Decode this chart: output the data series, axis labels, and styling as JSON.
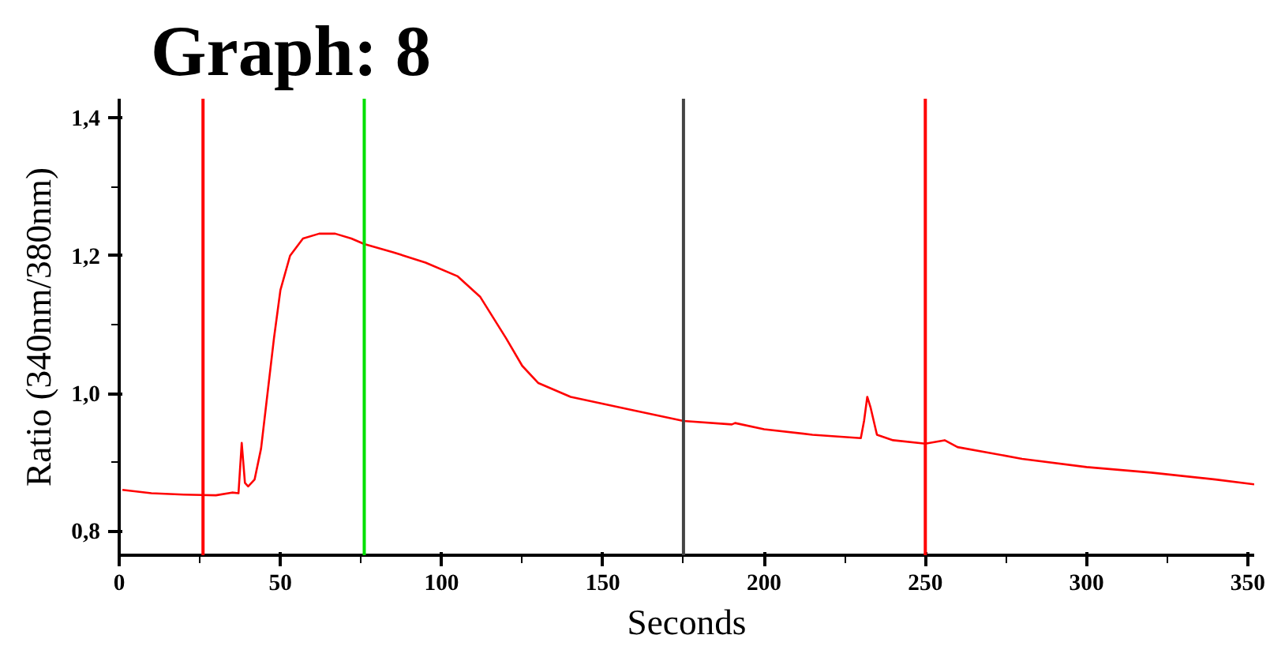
{
  "chart_data": {
    "type": "line",
    "title": "Graph: 8",
    "xlabel": "Seconds",
    "ylabel": "Ratio (340nm/380nm)",
    "x": [
      1,
      10,
      20,
      30,
      35,
      37,
      38,
      39,
      40,
      42,
      44,
      46,
      48,
      50,
      53,
      57,
      62,
      67,
      72,
      76,
      85,
      95,
      105,
      112,
      120,
      125,
      130,
      140,
      150,
      160,
      175,
      190,
      191,
      200,
      215,
      230,
      231,
      232,
      233,
      235,
      240,
      250,
      256,
      260,
      280,
      300,
      320,
      340,
      352
    ],
    "series": [
      {
        "color": "#ff0000",
        "values": [
          0.86,
          0.855,
          0.853,
          0.852,
          0.856,
          0.855,
          0.928,
          0.87,
          0.865,
          0.875,
          0.92,
          1.0,
          1.08,
          1.15,
          1.2,
          1.225,
          1.232,
          1.232,
          1.225,
          1.217,
          1.205,
          1.19,
          1.17,
          1.14,
          1.08,
          1.04,
          1.015,
          0.995,
          0.985,
          0.975,
          0.96,
          0.955,
          0.957,
          0.948,
          0.94,
          0.935,
          0.96,
          0.995,
          0.98,
          0.94,
          0.932,
          0.927,
          0.932,
          0.922,
          0.905,
          0.893,
          0.885,
          0.875,
          0.868
        ]
      }
    ],
    "xlim": [
      0,
      352
    ],
    "ylim": [
      0.765,
      1.428
    ],
    "xticks": [
      0,
      {
        "value": 25,
        "label": null
      },
      50,
      {
        "value": 75,
        "label": null
      },
      100,
      {
        "value": 125,
        "label": null
      },
      150,
      {
        "value": 175,
        "label": null
      },
      200,
      {
        "value": 225,
        "label": null
      },
      250,
      {
        "value": 275,
        "label": null
      },
      300,
      {
        "value": 325,
        "label": null
      },
      350
    ],
    "yticks": [
      {
        "value": 0.8,
        "label": "0,8"
      },
      {
        "value": 0.9,
        "label": null
      },
      {
        "value": 1.0,
        "label": "1,0"
      },
      {
        "value": 1.1,
        "label": null
      },
      {
        "value": 1.2,
        "label": "1,2"
      },
      {
        "value": 1.3,
        "label": null
      },
      {
        "value": 1.4,
        "label": "1,4"
      }
    ],
    "ref_lines": [
      {
        "axis": "x",
        "value": 26,
        "color": "#ff0000"
      },
      {
        "axis": "x",
        "value": 76,
        "color": "#00e000"
      },
      {
        "axis": "x",
        "value": 175,
        "color": "#444444"
      },
      {
        "axis": "x",
        "value": 250,
        "color": "#ff0000"
      }
    ],
    "grid": false,
    "marker": "none",
    "line_style": "solid"
  }
}
